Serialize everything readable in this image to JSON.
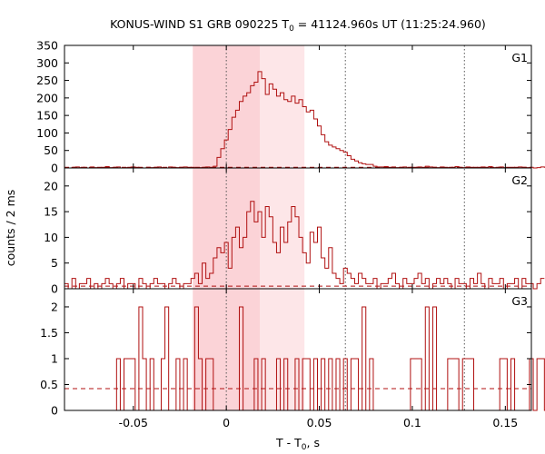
{
  "colors": {
    "histogram": "#b01010",
    "background_line": "#b01010",
    "shade_outer": "#fde6e8",
    "shade_inner": "#fbd3d7",
    "axis": "#000000",
    "guide_dotted": "#555555"
  },
  "chart_data": {
    "type": "histogram_stack",
    "title_prefix": "KONUS-WIND S1 GRB 090225 T",
    "title_subscript": "0",
    "title_suffix": " = 41124.960s UT (11:25:24.960)",
    "xlabel_prefix": "T - T",
    "xlabel_subscript": "0",
    "xlabel_suffix": ", s",
    "ylabel": "counts / 2 ms",
    "xlim": [
      -0.087,
      0.164
    ],
    "bin_width": 0.002,
    "x_ticks": [
      -0.05,
      0,
      0.05,
      0.1,
      0.15
    ],
    "x_tick_labels": [
      "-0.05",
      "0",
      "0.05",
      "0.1",
      "0.15"
    ],
    "shaded_intervals": [
      {
        "role": "outer",
        "x": [
          -0.018,
          0.042
        ]
      },
      {
        "role": "inner",
        "x": [
          -0.018,
          0.018
        ]
      }
    ],
    "vertical_guides": [
      0,
      0.064,
      0.128
    ],
    "panels": [
      {
        "name": "G1",
        "ylim": [
          0,
          350
        ],
        "y_ticks": [
          0,
          50,
          100,
          150,
          200,
          250,
          300,
          350
        ],
        "y_tick_labels": [
          "0",
          "50",
          "100",
          "150",
          "200",
          "250",
          "300",
          "350"
        ],
        "background": 2,
        "start_x": -0.087,
        "counts": [
          0,
          0,
          2,
          3,
          1,
          2,
          0,
          3,
          1,
          0,
          2,
          4,
          1,
          2,
          3,
          0,
          1,
          2,
          3,
          2,
          1,
          0,
          2,
          1,
          2,
          3,
          1,
          0,
          3,
          2,
          1,
          2,
          3,
          1,
          2,
          0,
          1,
          2,
          3,
          2,
          5,
          30,
          55,
          80,
          110,
          145,
          165,
          190,
          205,
          215,
          235,
          245,
          275,
          255,
          210,
          240,
          225,
          205,
          215,
          195,
          190,
          205,
          185,
          195,
          175,
          160,
          165,
          140,
          120,
          95,
          75,
          65,
          60,
          55,
          50,
          45,
          35,
          25,
          20,
          15,
          12,
          10,
          10,
          5,
          3,
          3,
          4,
          2,
          3,
          1,
          2,
          3,
          1,
          2,
          2,
          3,
          2,
          5,
          3,
          2,
          1,
          3,
          2,
          1,
          2,
          4,
          2,
          1,
          3,
          2,
          1,
          2,
          3,
          2,
          4,
          1,
          2,
          3,
          1,
          0,
          2,
          1,
          3,
          2,
          1,
          2,
          0,
          1,
          3,
          2,
          1,
          2,
          3,
          1
        ]
      },
      {
        "name": "G2",
        "ylim": [
          0,
          23.5
        ],
        "y_ticks": [
          0,
          5,
          10,
          15,
          20
        ],
        "y_tick_labels": [
          "0",
          "5",
          "10",
          "15",
          "20"
        ],
        "background": 0.5,
        "start_x": -0.087,
        "counts": [
          1,
          0,
          2,
          0,
          1,
          1,
          2,
          0,
          1,
          0,
          1,
          2,
          1,
          0,
          1,
          2,
          0,
          1,
          1,
          0,
          2,
          1,
          0,
          1,
          2,
          1,
          1,
          0,
          1,
          2,
          1,
          0,
          1,
          1,
          2,
          3,
          1,
          5,
          2,
          3,
          6,
          8,
          7,
          9,
          4,
          10,
          12,
          8,
          10,
          15,
          17,
          13,
          15,
          10,
          16,
          14,
          9,
          7,
          12,
          9,
          13,
          16,
          14,
          10,
          7,
          5,
          11,
          9,
          12,
          6,
          4,
          8,
          3,
          2,
          1,
          4,
          3,
          2,
          1,
          3,
          2,
          1,
          1,
          2,
          0,
          1,
          1,
          2,
          3,
          1,
          0,
          2,
          1,
          1,
          2,
          3,
          1,
          2,
          0,
          1,
          2,
          1,
          2,
          1,
          0,
          2,
          1,
          1,
          0,
          2,
          1,
          3,
          1,
          0,
          2,
          1,
          1,
          2,
          0,
          1,
          1,
          2,
          0,
          2,
          1,
          1,
          0,
          1,
          2
        ]
      },
      {
        "name": "G3",
        "ylim": [
          0,
          2.35
        ],
        "y_ticks": [
          0,
          0.5,
          1,
          1.5,
          2
        ],
        "y_tick_labels": [
          "0",
          "0.5",
          "1",
          "1.5",
          "2"
        ],
        "background": 0.42,
        "start_x": -0.087,
        "counts": [
          0,
          0,
          0,
          0,
          0,
          0,
          0,
          0,
          0,
          0,
          0,
          0,
          0,
          0,
          1,
          0,
          1,
          1,
          1,
          0,
          2,
          1,
          0,
          1,
          0,
          0,
          1,
          2,
          0,
          0,
          1,
          0,
          1,
          0,
          0,
          2,
          1,
          0,
          1,
          1,
          0,
          0,
          0,
          0,
          0,
          0,
          0,
          2,
          0,
          0,
          0,
          1,
          0,
          1,
          0,
          0,
          0,
          1,
          0,
          1,
          0,
          0,
          1,
          0,
          1,
          1,
          0,
          1,
          0,
          1,
          0,
          1,
          0,
          1,
          0,
          1,
          0,
          1,
          1,
          0,
          2,
          0,
          1,
          0,
          0,
          0,
          0,
          0,
          0,
          0,
          0,
          0,
          0,
          1,
          1,
          1,
          0,
          2,
          0,
          2,
          0,
          0,
          0,
          1,
          1,
          1,
          0,
          1,
          1,
          1,
          0,
          0,
          0,
          0,
          0,
          0,
          0,
          1,
          1,
          0,
          1,
          0,
          0,
          0,
          0,
          1,
          0,
          1,
          1,
          0
        ]
      }
    ]
  }
}
